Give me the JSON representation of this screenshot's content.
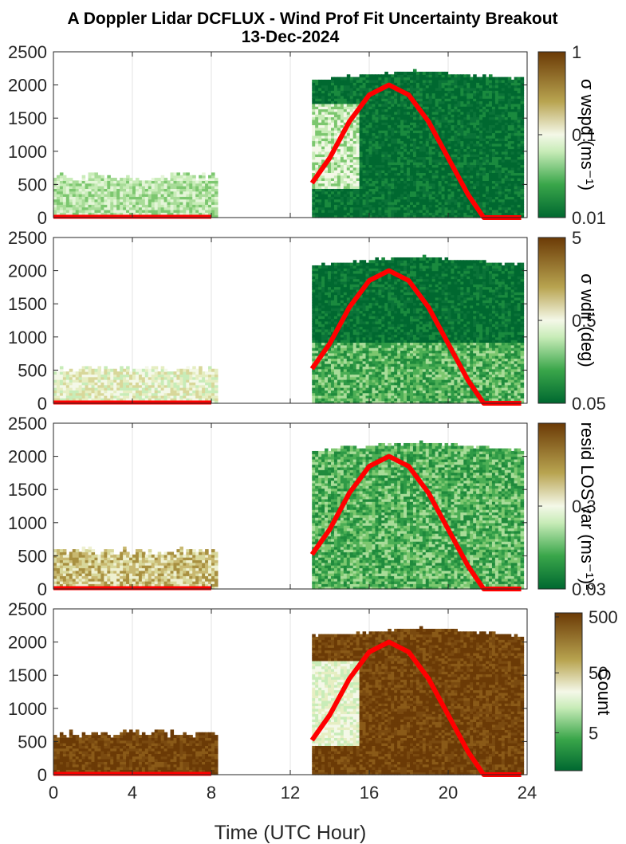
{
  "title_line1": "A Doppler Lidar DCFLUX - Wind Prof Fit Uncertainty Breakout",
  "title_line2": "13-Dec-2024",
  "xlabel": "Time (UTC Hour)",
  "colors": {
    "green_dark": "#006830",
    "green_mid": "#3aa64a",
    "green_light": "#c8ecb8",
    "pale": "#f4f8e8",
    "olive": "#b8a450",
    "brown": "#6b3a06",
    "curve": "#ff0000",
    "grid": "#e3e3e3"
  },
  "chart_data": [
    {
      "type": "heatmap",
      "name": "wspd",
      "colorbar_label": "σ wspd (ms⁻¹)",
      "colorbar_scale": "log",
      "colorbar_range": [
        0.01,
        1
      ],
      "colorbar_ticks": [
        "1",
        "0.1",
        "0.01"
      ],
      "x": {
        "label": "",
        "range": [
          0,
          24
        ],
        "ticks": [
          0,
          4,
          8,
          12,
          16,
          20,
          24
        ]
      },
      "y": {
        "range": [
          0,
          2500
        ],
        "ticks": [
          "2500",
          "2000",
          "1500",
          "1000",
          "500",
          "0"
        ]
      },
      "data_blocks": [
        {
          "x_range": [
            0,
            8.3
          ],
          "y_top": 600,
          "dominant": "green_light"
        },
        {
          "x_range": [
            13.1,
            23.8
          ],
          "y_top": 2200,
          "dominant": "green_dark"
        }
      ],
      "red_curve": {
        "x": [
          13.1,
          14,
          15,
          16,
          17,
          18,
          19,
          20,
          21,
          21.8,
          23.7
        ],
        "y": [
          520,
          900,
          1450,
          1850,
          2000,
          1850,
          1450,
          900,
          350,
          0,
          0
        ]
      },
      "red_baseline": {
        "x_range": [
          0,
          8
        ],
        "y": 0
      }
    },
    {
      "type": "heatmap",
      "name": "wdir",
      "colorbar_label": "σ wdir (deg)",
      "colorbar_scale": "log",
      "colorbar_range": [
        0.05,
        5
      ],
      "colorbar_ticks": [
        "5",
        "0.5",
        "0.05"
      ],
      "x": {
        "label": "",
        "range": [
          0,
          24
        ],
        "ticks": [
          0,
          4,
          8,
          12,
          16,
          20,
          24
        ]
      },
      "y": {
        "range": [
          0,
          2500
        ],
        "ticks": [
          "2500",
          "2000",
          "1500",
          "1000",
          "500",
          "0"
        ]
      },
      "data_blocks": [
        {
          "x_range": [
            0,
            8.3
          ],
          "y_top": 500,
          "dominant": "pale"
        },
        {
          "x_range": [
            13.1,
            23.8
          ],
          "y_top": 2200,
          "dominant": "green_dark"
        }
      ],
      "red_curve": {
        "x": [
          13.1,
          14,
          15,
          16,
          17,
          18,
          19,
          20,
          21,
          21.8,
          23.7
        ],
        "y": [
          520,
          900,
          1450,
          1850,
          2000,
          1850,
          1450,
          900,
          350,
          0,
          0
        ]
      },
      "red_baseline": {
        "x_range": [
          0,
          8
        ],
        "y": 0
      }
    },
    {
      "type": "heatmap",
      "name": "resid",
      "colorbar_label": "resid LOS var (ms⁻¹)²",
      "colorbar_scale": "log",
      "colorbar_range": [
        0.03,
        3
      ],
      "colorbar_ticks": [
        "0.3",
        "0.03"
      ],
      "x": {
        "label": "",
        "range": [
          0,
          24
        ],
        "ticks": [
          0,
          4,
          8,
          12,
          16,
          20,
          24
        ]
      },
      "y": {
        "range": [
          0,
          2500
        ],
        "ticks": [
          "2500",
          "2000",
          "1500",
          "1000",
          "500",
          "0"
        ]
      },
      "data_blocks": [
        {
          "x_range": [
            0,
            8.3
          ],
          "y_top": 550,
          "dominant": "olive"
        },
        {
          "x_range": [
            13.1,
            23.8
          ],
          "y_top": 2200,
          "dominant": "green_mid"
        }
      ],
      "red_curve": {
        "x": [
          13.1,
          14,
          15,
          16,
          17,
          18,
          19,
          20,
          21,
          21.8,
          23.7
        ],
        "y": [
          520,
          900,
          1450,
          1850,
          2000,
          1850,
          1450,
          900,
          350,
          0,
          0
        ]
      },
      "red_baseline": {
        "x_range": [
          0,
          8
        ],
        "y": 0
      }
    },
    {
      "type": "heatmap",
      "name": "count",
      "colorbar_label": "Count",
      "colorbar_scale": "log",
      "colorbar_range": [
        1,
        500
      ],
      "colorbar_ticks": [
        "500",
        "50",
        "5"
      ],
      "x": {
        "label": "Time (UTC Hour)",
        "range": [
          0,
          24
        ],
        "ticks": [
          0,
          4,
          8,
          12,
          16,
          20,
          24
        ]
      },
      "y": {
        "range": [
          0,
          2500
        ],
        "ticks": [
          "2500",
          "2000",
          "1500",
          "1000",
          "500",
          "0"
        ]
      },
      "data_blocks": [
        {
          "x_range": [
            0,
            8.3
          ],
          "y_top": 600,
          "dominant": "brown"
        },
        {
          "x_range": [
            13.1,
            23.8
          ],
          "y_top": 2200,
          "dominant": "brown"
        }
      ],
      "red_curve": {
        "x": [
          13.1,
          14,
          15,
          16,
          17,
          18,
          19,
          20,
          21,
          21.8,
          23.7
        ],
        "y": [
          520,
          900,
          1450,
          1850,
          2000,
          1850,
          1450,
          900,
          350,
          0,
          0
        ]
      },
      "red_baseline": {
        "x_range": [
          0,
          8
        ],
        "y": 0
      }
    }
  ]
}
